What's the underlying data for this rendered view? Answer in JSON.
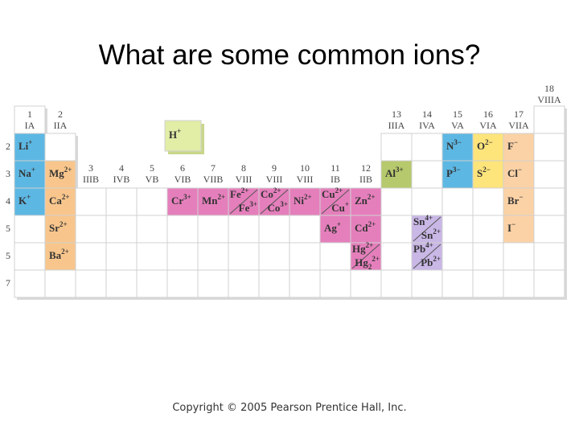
{
  "title": "What are some common ions?",
  "copyright": "Copyright © 2005 Pearson Prentice Hall, Inc.",
  "groups": [
    {
      "number": 1,
      "name": "IA"
    },
    {
      "number": 2,
      "name": "IIA"
    },
    {
      "number": 3,
      "name": "IIIB"
    },
    {
      "number": 4,
      "name": "IVB"
    },
    {
      "number": 5,
      "name": "VB"
    },
    {
      "number": 6,
      "name": "VIB"
    },
    {
      "number": 7,
      "name": "VIIB"
    },
    {
      "number": 8,
      "name": "VIII"
    },
    {
      "number": 9,
      "name": "VIII"
    },
    {
      "number": 10,
      "name": "VIII"
    },
    {
      "number": 11,
      "name": "IB"
    },
    {
      "number": 12,
      "name": "IIB"
    },
    {
      "number": 13,
      "name": "IIIA"
    },
    {
      "number": 14,
      "name": "IVA"
    },
    {
      "number": 15,
      "name": "VA"
    },
    {
      "number": 16,
      "name": "VIA"
    },
    {
      "number": 17,
      "name": "VIIA"
    },
    {
      "number": 18,
      "name": "VIIIA"
    }
  ],
  "periods": [
    2,
    3,
    4,
    5,
    5,
    7
  ],
  "hydrogen": {
    "color": "#e2eda6",
    "ions": [
      {
        "symbol": "H",
        "charge": "+"
      }
    ]
  },
  "cells": [
    {
      "color": "#5db7e3",
      "ions": [
        {
          "symbol": "Li",
          "charge": "+"
        }
      ]
    },
    {
      "color": "#5db7e3",
      "ions": [
        {
          "symbol": "Na",
          "charge": "+"
        }
      ]
    },
    {
      "color": "#5db7e3",
      "ions": [
        {
          "symbol": "K",
          "charge": "+"
        }
      ]
    },
    {
      "color": "#f8c68c",
      "ions": [
        {
          "symbol": "Mg",
          "charge": "2+"
        }
      ]
    },
    {
      "color": "#f8c68c",
      "ions": [
        {
          "symbol": "Ca",
          "charge": "2+"
        }
      ]
    },
    {
      "color": "#f8c68c",
      "ions": [
        {
          "symbol": "Sr",
          "charge": "2+"
        }
      ]
    },
    {
      "color": "#f8c68c",
      "ions": [
        {
          "symbol": "Ba",
          "charge": "2+"
        }
      ]
    },
    {
      "color": "#e57fbc",
      "ions": [
        {
          "symbol": "Cr",
          "charge": "3+"
        }
      ]
    },
    {
      "color": "#e57fbc",
      "ions": [
        {
          "symbol": "Mn",
          "charge": "2+"
        }
      ]
    },
    {
      "color": "#e57fbc",
      "ions": [
        {
          "symbol": "Fe",
          "charge": "2+"
        },
        {
          "symbol": "Fe",
          "charge": "3+"
        }
      ]
    },
    {
      "color": "#e57fbc",
      "ions": [
        {
          "symbol": "Co",
          "charge": "2+"
        },
        {
          "symbol": "Co",
          "charge": "3+"
        }
      ]
    },
    {
      "color": "#e57fbc",
      "ions": [
        {
          "symbol": "Ni",
          "charge": "2+"
        }
      ]
    },
    {
      "color": "#e57fbc",
      "ions": [
        {
          "symbol": "Cu",
          "charge": "2+"
        },
        {
          "symbol": "Cu",
          "charge": "+"
        }
      ]
    },
    {
      "color": "#e57fbc",
      "ions": [
        {
          "symbol": "Zn",
          "charge": "2+"
        }
      ]
    },
    {
      "color": "#e57fbc",
      "ions": [
        {
          "symbol": "Ag",
          "charge": "+"
        }
      ]
    },
    {
      "color": "#e57fbc",
      "ions": [
        {
          "symbol": "Cd",
          "charge": "2+"
        }
      ]
    },
    {
      "color": "#e57fbc",
      "ions": [
        {
          "symbol": "Hg",
          "charge": "2+"
        },
        {
          "symbol": "Hg",
          "sub": "2",
          "charge": "2+"
        }
      ]
    },
    {
      "color": "#b6c96c",
      "ions": [
        {
          "symbol": "Al",
          "charge": "3+"
        }
      ]
    },
    {
      "color": "#c9b7e6",
      "ions": [
        {
          "symbol": "Sn",
          "charge": "4+"
        },
        {
          "symbol": "Sn",
          "charge": "2+"
        }
      ]
    },
    {
      "color": "#c9b7e6",
      "ions": [
        {
          "symbol": "Pb",
          "charge": "4+"
        },
        {
          "symbol": "Pb",
          "charge": "2+"
        }
      ]
    },
    {
      "color": "#5db7e3",
      "ions": [
        {
          "symbol": "N",
          "charge": "3−"
        }
      ]
    },
    {
      "color": "#5db7e3",
      "ions": [
        {
          "symbol": "P",
          "charge": "3−"
        }
      ]
    },
    {
      "color": "#fde47b",
      "ions": [
        {
          "symbol": "O",
          "charge": "2−"
        }
      ]
    },
    {
      "color": "#fde47b",
      "ions": [
        {
          "symbol": "S",
          "charge": "2−"
        }
      ]
    },
    {
      "color": "#fbd2a6",
      "ions": [
        {
          "symbol": "F",
          "charge": "−"
        }
      ]
    },
    {
      "color": "#fbd2a6",
      "ions": [
        {
          "symbol": "Cl",
          "charge": "−"
        }
      ]
    },
    {
      "color": "#fbd2a6",
      "ions": [
        {
          "symbol": "Br",
          "charge": "−"
        }
      ]
    },
    {
      "color": "#fbd2a6",
      "ions": [
        {
          "symbol": "I",
          "charge": "−"
        }
      ]
    }
  ]
}
